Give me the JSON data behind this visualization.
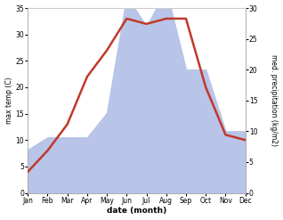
{
  "months": [
    "Jan",
    "Feb",
    "Mar",
    "Apr",
    "May",
    "Jun",
    "Jul",
    "Aug",
    "Sep",
    "Oct",
    "Nov",
    "Dec"
  ],
  "temp": [
    4,
    8,
    13,
    22,
    27,
    33,
    32,
    33,
    33,
    20,
    11,
    10
  ],
  "precip": [
    7,
    9,
    9,
    9,
    13,
    32,
    27,
    33,
    20,
    20,
    10,
    10
  ],
  "temp_color": "#c0392b",
  "precip_color": "#b8c4e8",
  "temp_ylim": [
    0,
    35
  ],
  "precip_ylim": [
    0,
    30
  ],
  "temp_yticks": [
    0,
    5,
    10,
    15,
    20,
    25,
    30,
    35
  ],
  "precip_yticks": [
    0,
    5,
    10,
    15,
    20,
    25,
    30
  ],
  "xlabel": "date (month)",
  "ylabel_left": "max temp (C)",
  "ylabel_right": "med. precipitation (kg/m2)",
  "bg_color": "#ffffff",
  "spine_color": "#aaaaaa",
  "linewidth": 1.8
}
